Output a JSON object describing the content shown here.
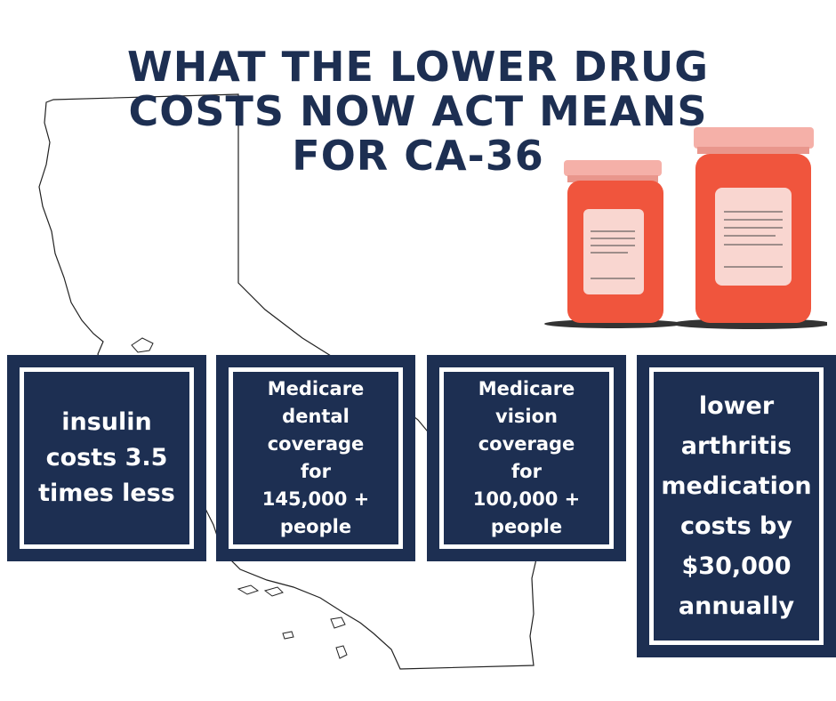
{
  "title": {
    "lines": [
      "WHAT THE LOWER DRUG",
      "COSTS NOW ACT MEANS",
      "FOR CA-36"
    ]
  },
  "cards": [
    {
      "lines": [
        "insulin",
        "costs 3.5",
        "times less"
      ]
    },
    {
      "lines": [
        "Medicare",
        "dental",
        "coverage",
        "for",
        "145,000 +",
        "people"
      ]
    },
    {
      "lines": [
        "Medicare",
        "vision",
        "coverage",
        "for",
        "100,000 +",
        "people"
      ]
    },
    {
      "lines": [
        "lower",
        "arthritis",
        "medication",
        "costs by",
        "$30,000",
        "annually"
      ]
    }
  ],
  "colors": {
    "navy": "#1d2f52",
    "bottle": "#f0553d",
    "cap": "#f5b0a8",
    "label": "#f9d6d0"
  }
}
